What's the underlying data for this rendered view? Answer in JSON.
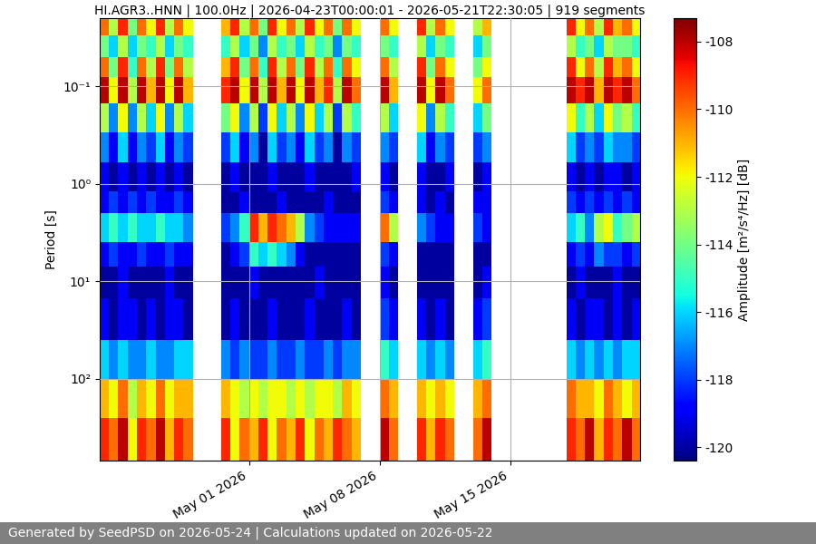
{
  "chart_data": {
    "type": "heatmap",
    "title": "HI.AGR3..HNN | 100.0Hz | 2026-04-23T00:00:01 - 2026-05-21T22:30:05 | 919 segments",
    "ylabel": "Period [s]",
    "colorbar_label": "Amplitude [m²/s⁴/Hz] [dB]",
    "log": "y",
    "grid": true,
    "xlim": [
      "2026-04-23T00:00:01",
      "2026-05-21T22:30:05"
    ],
    "xticks": [
      {
        "value": "2026-05-01T00:00:00",
        "label": "May 01 2026"
      },
      {
        "value": "2026-05-08T00:00:00",
        "label": "May 08 2026"
      },
      {
        "value": "2026-05-15T00:00:00",
        "label": "May 15 2026"
      }
    ],
    "ylim": [
      690,
      0.02
    ],
    "yticks": [
      {
        "value": 0.1,
        "label": "10⁻¹"
      },
      {
        "value": 1,
        "label": "10⁰"
      },
      {
        "value": 10,
        "label": "10¹"
      },
      {
        "value": 100,
        "label": "10²"
      }
    ],
    "clim": [
      -120.4,
      -107.3
    ],
    "cticks": [
      -120,
      -118,
      -116,
      -114,
      -112,
      -110,
      -108
    ],
    "x_edges": [
      "2026-04-23T00:00:00",
      "2026-04-23T12:00:00",
      "2026-04-24T00:00:00",
      "2026-04-24T12:00:00",
      "2026-04-25T00:00:00",
      "2026-04-25T12:00:00",
      "2026-04-26T00:00:00",
      "2026-04-26T12:00:00",
      "2026-04-27T00:00:00",
      "2026-04-27T12:00:00",
      "2026-04-28T00:00:00",
      "2026-04-28T12:00:00",
      "2026-04-29T00:00:00",
      "2026-04-29T12:00:00",
      "2026-04-30T00:00:00",
      "2026-04-30T12:00:00",
      "2026-05-01T00:00:00",
      "2026-05-01T12:00:00",
      "2026-05-02T00:00:00",
      "2026-05-02T12:00:00",
      "2026-05-03T00:00:00",
      "2026-05-03T12:00:00",
      "2026-05-04T00:00:00",
      "2026-05-04T12:00:00",
      "2026-05-05T00:00:00",
      "2026-05-05T12:00:00",
      "2026-05-06T00:00:00",
      "2026-05-06T12:00:00",
      "2026-05-07T00:00:00",
      "2026-05-07T12:00:00",
      "2026-05-08T00:00:00",
      "2026-05-08T12:00:00",
      "2026-05-09T00:00:00",
      "2026-05-09T12:00:00",
      "2026-05-10T00:00:00",
      "2026-05-10T12:00:00",
      "2026-05-11T00:00:00",
      "2026-05-11T12:00:00",
      "2026-05-12T00:00:00",
      "2026-05-12T12:00:00",
      "2026-05-13T00:00:00",
      "2026-05-13T12:00:00",
      "2026-05-14T00:00:00",
      "2026-05-14T12:00:00",
      "2026-05-15T00:00:00",
      "2026-05-15T12:00:00",
      "2026-05-16T00:00:00",
      "2026-05-16T12:00:00",
      "2026-05-17T00:00:00",
      "2026-05-17T12:00:00",
      "2026-05-18T00:00:00",
      "2026-05-18T12:00:00",
      "2026-05-19T00:00:00",
      "2026-05-19T12:00:00",
      "2026-05-20T00:00:00",
      "2026-05-20T12:00:00",
      "2026-05-21T00:00:00",
      "2026-05-21T12:00:00",
      "2026-05-22T00:00:00"
    ],
    "y_edges": [
      0.02,
      0.03,
      0.05,
      0.08,
      0.15,
      0.3,
      0.6,
      1.2,
      2,
      4,
      7,
      15,
      40,
      100,
      250,
      690
    ],
    "cells": [
      [
        -110,
        -113,
        -109,
        -114,
        -110,
        -112,
        -109,
        -113,
        -110,
        -112,
        null,
        null,
        null,
        -111,
        -109,
        -113,
        -110,
        -114,
        -109,
        -112,
        -110,
        -113,
        -109,
        -112,
        -110,
        -114,
        -110,
        -112,
        null,
        null,
        -110,
        -112,
        null,
        null,
        -109,
        -113,
        -110,
        -112,
        null,
        null,
        -113,
        -111,
        null,
        null,
        null,
        null,
        null,
        null,
        null,
        null,
        -109,
        -112,
        -110,
        -113,
        -109,
        -111,
        -110,
        -112
      ],
      [
        -114,
        -116,
        -113,
        -116,
        -114,
        -115,
        -113,
        -116,
        -114,
        -115,
        null,
        null,
        null,
        -115,
        -113,
        -116,
        -114,
        -117,
        -113,
        -115,
        -114,
        -116,
        -113,
        -115,
        -114,
        -117,
        -114,
        -115,
        null,
        null,
        -114,
        -115,
        null,
        null,
        -113,
        -116,
        -114,
        -115,
        null,
        null,
        -116,
        -114,
        null,
        null,
        null,
        null,
        null,
        null,
        null,
        null,
        -113,
        -115,
        -114,
        -116,
        -113,
        -114,
        -114,
        -115
      ],
      [
        -110,
        -114,
        -109,
        -115,
        -110,
        -113,
        -109,
        -114,
        -110,
        -113,
        null,
        null,
        null,
        -111,
        -109,
        -114,
        -110,
        -115,
        -109,
        -113,
        -110,
        -114,
        -109,
        -113,
        -110,
        -115,
        -110,
        -112,
        null,
        null,
        -110,
        -113,
        null,
        null,
        -109,
        -114,
        -110,
        -112,
        null,
        null,
        -114,
        -112,
        null,
        null,
        null,
        null,
        null,
        null,
        null,
        null,
        -109,
        -112,
        -110,
        -113,
        -109,
        -111,
        -110,
        -112
      ],
      [
        -108,
        -112,
        -108,
        -113,
        -108,
        -111,
        -108,
        -112,
        -108,
        -111,
        null,
        null,
        null,
        -109,
        -108,
        -112,
        -108,
        -113,
        -108,
        -111,
        -108,
        -112,
        -108,
        -111,
        -109,
        -113,
        -108,
        -110,
        null,
        null,
        -108,
        -111,
        null,
        null,
        -108,
        -112,
        -108,
        -110,
        null,
        null,
        -112,
        -110,
        null,
        null,
        null,
        null,
        null,
        null,
        null,
        null,
        -108,
        -109,
        -108,
        -111,
        -108,
        -109,
        -108,
        -110
      ],
      [
        -113,
        -117,
        -112,
        -117,
        -113,
        -116,
        -112,
        -117,
        -113,
        -116,
        null,
        null,
        null,
        -114,
        -112,
        -117,
        -113,
        -118,
        -112,
        -116,
        -113,
        -117,
        -112,
        -116,
        -113,
        -118,
        -113,
        -115,
        null,
        null,
        -113,
        -116,
        null,
        null,
        -112,
        -117,
        -113,
        -115,
        null,
        null,
        -116,
        -114,
        null,
        null,
        null,
        null,
        null,
        null,
        null,
        null,
        -112,
        -115,
        -113,
        -116,
        -112,
        -114,
        -113,
        -115
      ],
      [
        -117,
        -119,
        -116,
        -119,
        -117,
        -118,
        -116,
        -119,
        -117,
        -118,
        null,
        null,
        null,
        -118,
        -116,
        -119,
        -117,
        -120,
        -116,
        -118,
        -117,
        -119,
        -116,
        -118,
        -117,
        -120,
        -117,
        -118,
        null,
        null,
        -117,
        -118,
        null,
        null,
        -116,
        -119,
        -117,
        -118,
        null,
        null,
        -118,
        -117,
        null,
        null,
        null,
        null,
        null,
        null,
        null,
        null,
        -116,
        -118,
        -117,
        -118,
        -116,
        -117,
        -117,
        -118
      ],
      [
        -119,
        -120,
        -119,
        -120,
        -119,
        -120,
        -119,
        -120,
        -119,
        -120,
        null,
        null,
        null,
        -120,
        -119,
        -120,
        -120,
        -120,
        -119,
        -120,
        -120,
        -120,
        -119,
        -120,
        -120,
        -120,
        -120,
        -119,
        null,
        null,
        -119,
        -120,
        null,
        null,
        -119,
        -120,
        -120,
        -119,
        null,
        null,
        -120,
        -119,
        null,
        null,
        null,
        null,
        null,
        null,
        null,
        null,
        -119,
        -120,
        -119,
        -120,
        -119,
        -119,
        -120,
        -119
      ],
      [
        -119,
        -118,
        -119,
        -118,
        -119,
        -118,
        -119,
        -119,
        -118,
        -119,
        null,
        null,
        null,
        -120,
        -120,
        -119,
        -120,
        -120,
        -120,
        -119,
        -120,
        -120,
        -120,
        -120,
        -119,
        -120,
        -120,
        -120,
        null,
        null,
        -118,
        -119,
        null,
        null,
        -119,
        -120,
        -119,
        -120,
        null,
        null,
        -119,
        -119,
        null,
        null,
        null,
        null,
        null,
        null,
        null,
        null,
        -118,
        -119,
        -118,
        -119,
        -118,
        -119,
        -118,
        -119
      ],
      [
        -116,
        -115,
        -116,
        -115,
        -116,
        -116,
        -115,
        -116,
        -116,
        -117,
        null,
        null,
        null,
        -118,
        -117,
        -115,
        -109,
        -111,
        -109,
        -110,
        -111,
        -113,
        -117,
        -118,
        -119,
        -119,
        -119,
        -119,
        null,
        null,
        -110,
        -113,
        null,
        null,
        -117,
        -118,
        -119,
        -119,
        null,
        null,
        -118,
        -119,
        null,
        null,
        null,
        null,
        null,
        null,
        null,
        null,
        -116,
        -115,
        -117,
        -113,
        -112,
        -115,
        -114,
        -113
      ],
      [
        -119,
        -118,
        -119,
        -119,
        -118,
        -119,
        -119,
        -118,
        -119,
        -119,
        null,
        null,
        null,
        -120,
        -119,
        -118,
        -115,
        -116,
        -115,
        -116,
        -117,
        -119,
        -120,
        -120,
        -120,
        -120,
        -120,
        -120,
        null,
        null,
        -118,
        -119,
        null,
        null,
        -120,
        -120,
        -120,
        -120,
        null,
        null,
        -120,
        -120,
        null,
        null,
        null,
        null,
        null,
        null,
        null,
        null,
        -119,
        -118,
        -119,
        -117,
        -118,
        -118,
        -119,
        -118
      ],
      [
        -120,
        -120,
        -119,
        -120,
        -120,
        -120,
        -120,
        -119,
        -120,
        -120,
        null,
        null,
        null,
        -120,
        -120,
        -120,
        -119,
        -120,
        -120,
        -120,
        -120,
        -120,
        -120,
        -119,
        -120,
        -120,
        -120,
        -120,
        null,
        null,
        -119,
        -120,
        null,
        null,
        -120,
        -120,
        -120,
        -120,
        null,
        null,
        -120,
        -119,
        null,
        null,
        null,
        null,
        null,
        null,
        null,
        null,
        -120,
        -119,
        -120,
        -120,
        -120,
        -119,
        -120,
        -120
      ],
      [
        -119,
        -120,
        -119,
        -119,
        -120,
        -119,
        -120,
        -119,
        -119,
        -120,
        null,
        null,
        null,
        -120,
        -119,
        -120,
        -120,
        -120,
        -119,
        -120,
        -120,
        -120,
        -119,
        -120,
        -120,
        -120,
        -119,
        -120,
        null,
        null,
        -118,
        -119,
        null,
        null,
        -119,
        -120,
        -119,
        -120,
        null,
        null,
        -119,
        -118,
        null,
        null,
        null,
        null,
        null,
        null,
        null,
        null,
        -119,
        -120,
        -119,
        -119,
        -120,
        -119,
        -120,
        -119
      ],
      [
        -116,
        -117,
        -116,
        -117,
        -117,
        -116,
        -117,
        -117,
        -116,
        -116,
        null,
        null,
        null,
        -117,
        -118,
        -117,
        -118,
        -118,
        -117,
        -118,
        -118,
        -117,
        -118,
        -118,
        -117,
        -118,
        -117,
        -117,
        null,
        null,
        -115,
        -116,
        null,
        null,
        -116,
        -117,
        -116,
        -117,
        null,
        null,
        -116,
        -115,
        null,
        null,
        null,
        null,
        null,
        null,
        null,
        null,
        -116,
        -117,
        -116,
        -117,
        -116,
        -117,
        -116,
        -116
      ],
      [
        -111,
        -112,
        -110,
        -113,
        -111,
        -112,
        -110,
        -112,
        -111,
        -111,
        null,
        null,
        null,
        -111,
        -112,
        -113,
        -112,
        -113,
        -112,
        -112,
        -113,
        -112,
        -113,
        -112,
        -112,
        -113,
        -111,
        -112,
        null,
        null,
        -110,
        -111,
        null,
        null,
        -111,
        -112,
        -111,
        -112,
        null,
        null,
        -111,
        -110,
        null,
        null,
        null,
        null,
        null,
        null,
        null,
        null,
        -110,
        -111,
        -111,
        -112,
        -110,
        -111,
        -112,
        -111
      ],
      [
        -109,
        -110,
        -108,
        -112,
        -109,
        -110,
        -108,
        -111,
        -109,
        -110,
        null,
        null,
        null,
        -109,
        -112,
        -110,
        -111,
        -109,
        -112,
        -110,
        -111,
        -109,
        -112,
        -110,
        -111,
        -109,
        -110,
        -111,
        null,
        null,
        -108,
        -110,
        null,
        null,
        -109,
        -111,
        -109,
        -110,
        null,
        null,
        -110,
        -108,
        null,
        null,
        null,
        null,
        null,
        null,
        null,
        null,
        -109,
        -110,
        -108,
        -111,
        -109,
        -110,
        -108,
        -110
      ]
    ]
  },
  "footer": "Generated by SeedPSD on 2026-05-24 | Calculations updated on 2026-05-22"
}
